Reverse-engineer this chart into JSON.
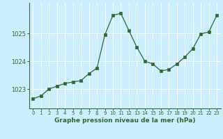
{
  "x": [
    0,
    1,
    2,
    3,
    4,
    5,
    6,
    7,
    8,
    9,
    10,
    11,
    12,
    13,
    14,
    15,
    16,
    17,
    18,
    19,
    20,
    21,
    22,
    23
  ],
  "y": [
    1022.65,
    1022.75,
    1023.0,
    1023.1,
    1023.2,
    1023.25,
    1023.3,
    1023.55,
    1023.75,
    1024.95,
    1025.65,
    1025.72,
    1025.1,
    1024.5,
    1024.0,
    1023.9,
    1023.65,
    1023.7,
    1023.9,
    1024.15,
    1024.45,
    1024.98,
    1025.05,
    1025.65
  ],
  "line_color": "#2d6a2d",
  "marker_color": "#2d6a2d",
  "bg_color": "#cceeff",
  "grid_color": "#ffffff",
  "xlabel": "Graphe pression niveau de la mer (hPa)",
  "xlabel_color": "#2d6a2d",
  "tick_color": "#2d6a2d",
  "ylim": [
    1022.3,
    1026.1
  ],
  "yticks": [
    1023,
    1024,
    1025
  ],
  "xlim": [
    -0.5,
    23.5
  ],
  "xticks": [
    0,
    1,
    2,
    3,
    4,
    5,
    6,
    7,
    8,
    9,
    10,
    11,
    12,
    13,
    14,
    15,
    16,
    17,
    18,
    19,
    20,
    21,
    22,
    23
  ],
  "figsize": [
    3.2,
    2.0
  ],
  "dpi": 100
}
